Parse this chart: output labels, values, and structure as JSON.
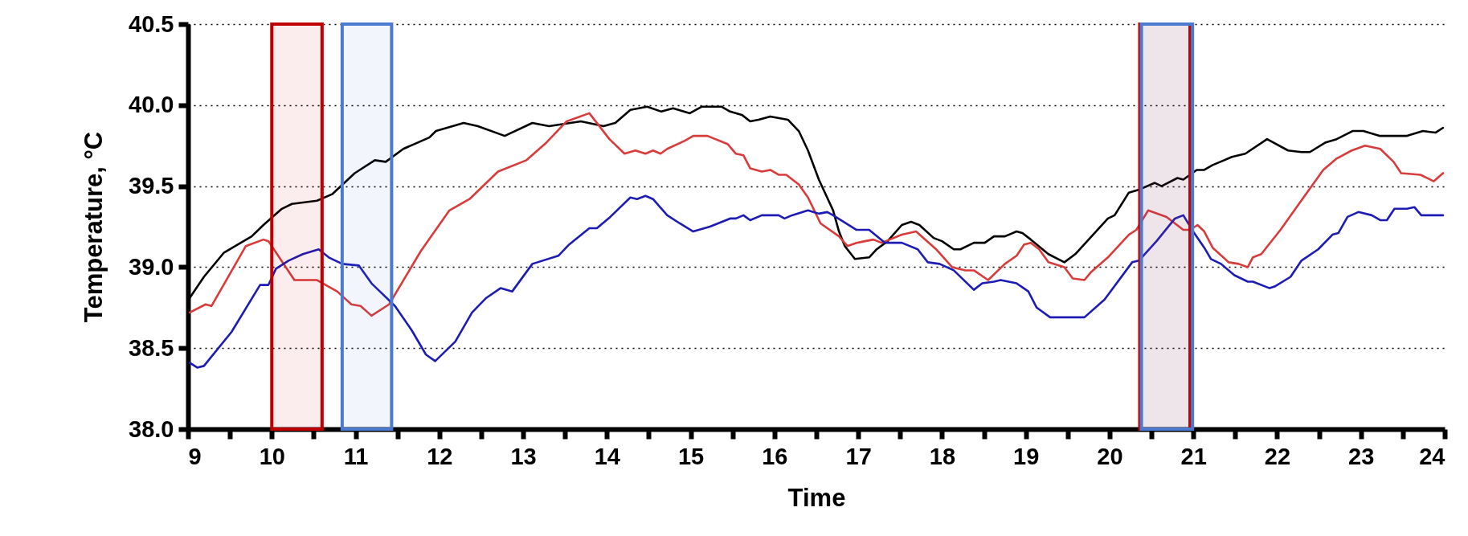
{
  "chart_data": {
    "type": "line",
    "xlabel": "Time",
    "ylabel": "Temperature, °C",
    "xlim": [
      9,
      24
    ],
    "ylim": [
      38,
      40.5
    ],
    "xticks": [
      9,
      {
        "value": 9.5,
        "label": null
      },
      10,
      {
        "value": 10.5,
        "label": null
      },
      11,
      {
        "value": 11.5,
        "label": null
      },
      12,
      {
        "value": 12.5,
        "label": null
      },
      13,
      {
        "value": 13.5,
        "label": null
      },
      14,
      {
        "value": 14.5,
        "label": null
      },
      15,
      {
        "value": 15.5,
        "label": null
      },
      16,
      {
        "value": 16.5,
        "label": null
      },
      17,
      {
        "value": 17.5,
        "label": null
      },
      18,
      {
        "value": 18.5,
        "label": null
      },
      19,
      {
        "value": 19.5,
        "label": null
      },
      20,
      {
        "value": 20.5,
        "label": null
      },
      21,
      {
        "value": 21.5,
        "label": null
      },
      22,
      {
        "value": 22.5,
        "label": null
      },
      23,
      {
        "value": 23.5,
        "label": null
      },
      24
    ],
    "yticks": [
      {
        "value": 38,
        "label": "38.0"
      },
      38.5,
      {
        "value": 39,
        "label": "39.0"
      },
      39.5,
      {
        "value": 40,
        "label": "40.0"
      },
      40.5
    ],
    "grid": "y",
    "series": [
      {
        "color": "#000000",
        "x": [
          9.02,
          9.19,
          9.43,
          9.76,
          9.9,
          10.12,
          10.24,
          10.54,
          10.72,
          10.99,
          11.23,
          11.36,
          11.57,
          11.88,
          11.96,
          12.29,
          12.46,
          12.78,
          13.11,
          13.31,
          13.69,
          13.96,
          14.1,
          14.28,
          14.48,
          14.65,
          14.79,
          14.99,
          15.13,
          15.37,
          15.47,
          15.61,
          15.71,
          15.81,
          15.95,
          16.16,
          16.29,
          16.4,
          16.53,
          16.7,
          16.77,
          16.84,
          16.96,
          17.13,
          17.22,
          17.35,
          17.52,
          17.63,
          17.73,
          17.9,
          18.0,
          18.14,
          18.22,
          18.38,
          18.51,
          18.62,
          18.75,
          18.89,
          18.96,
          19.06,
          19.27,
          19.46,
          19.59,
          19.98,
          20.06,
          20.23,
          20.36,
          20.54,
          20.62,
          20.81,
          20.88,
          21.04,
          21.13,
          21.23,
          21.46,
          21.62,
          21.88,
          22.13,
          22.29,
          22.39,
          22.58,
          22.71,
          22.9,
          23.03,
          23.22,
          23.32,
          23.55,
          23.74,
          23.89,
          23.98
        ],
        "values": [
          38.81,
          38.94,
          39.09,
          39.19,
          39.26,
          39.36,
          39.39,
          39.41,
          39.45,
          39.58,
          39.66,
          39.65,
          39.73,
          39.8,
          39.84,
          39.89,
          39.87,
          39.81,
          39.89,
          39.87,
          39.9,
          39.87,
          39.89,
          39.97,
          39.99,
          39.96,
          39.98,
          39.95,
          39.99,
          39.99,
          39.96,
          39.94,
          39.9,
          39.91,
          39.93,
          39.91,
          39.84,
          39.72,
          39.54,
          39.35,
          39.22,
          39.13,
          39.05,
          39.06,
          39.11,
          39.16,
          39.26,
          39.28,
          39.26,
          39.18,
          39.16,
          39.11,
          39.11,
          39.15,
          39.15,
          39.19,
          39.19,
          39.22,
          39.21,
          39.17,
          39.08,
          39.03,
          39.08,
          39.3,
          39.32,
          39.46,
          39.48,
          39.52,
          39.5,
          39.55,
          39.54,
          39.6,
          39.6,
          39.63,
          39.68,
          39.7,
          39.79,
          39.72,
          39.71,
          39.71,
          39.77,
          39.79,
          39.84,
          39.84,
          39.81,
          39.81,
          39.81,
          39.84,
          39.83,
          39.86
        ]
      },
      {
        "color": "#d93b3b",
        "x": [
          9.02,
          9.21,
          9.28,
          9.69,
          9.9,
          9.96,
          10.27,
          10.54,
          10.78,
          10.95,
          11.06,
          11.19,
          11.4,
          11.78,
          12.12,
          12.36,
          12.7,
          13.04,
          13.28,
          13.52,
          13.79,
          14.03,
          14.21,
          14.34,
          14.46,
          14.55,
          14.64,
          14.72,
          14.93,
          15.03,
          15.2,
          15.44,
          15.54,
          15.63,
          15.71,
          15.85,
          15.95,
          16.05,
          16.14,
          16.29,
          16.4,
          16.55,
          16.77,
          16.87,
          16.98,
          17.08,
          17.18,
          17.28,
          17.52,
          17.69,
          17.93,
          18.12,
          18.28,
          18.38,
          18.55,
          18.75,
          18.89,
          18.98,
          19.06,
          19.16,
          19.27,
          19.46,
          19.56,
          19.7,
          19.78,
          19.98,
          20.23,
          20.32,
          20.46,
          20.68,
          20.88,
          20.96,
          21.05,
          21.13,
          21.23,
          21.42,
          21.54,
          21.65,
          21.71,
          21.81,
          22.04,
          22.26,
          22.55,
          22.71,
          22.89,
          23.05,
          23.23,
          23.39,
          23.48,
          23.71,
          23.87,
          23.98
        ],
        "values": [
          38.72,
          38.77,
          38.76,
          39.13,
          39.17,
          39.16,
          38.92,
          38.92,
          38.85,
          38.77,
          38.76,
          38.7,
          38.77,
          39.1,
          39.35,
          39.42,
          39.59,
          39.66,
          39.77,
          39.9,
          39.95,
          39.79,
          39.7,
          39.72,
          39.7,
          39.72,
          39.7,
          39.73,
          39.78,
          39.81,
          39.81,
          39.76,
          39.7,
          39.69,
          39.61,
          39.59,
          39.6,
          39.57,
          39.57,
          39.51,
          39.43,
          39.27,
          39.19,
          39.13,
          39.15,
          39.16,
          39.17,
          39.15,
          39.2,
          39.22,
          39.11,
          39.0,
          38.98,
          38.98,
          38.92,
          39.02,
          39.07,
          39.14,
          39.15,
          39.11,
          39.03,
          39.0,
          38.93,
          38.92,
          38.97,
          39.06,
          39.2,
          39.23,
          39.35,
          39.31,
          39.23,
          39.23,
          39.26,
          39.22,
          39.12,
          39.03,
          39.02,
          39.0,
          39.06,
          39.08,
          39.23,
          39.39,
          39.6,
          39.67,
          39.72,
          39.75,
          39.73,
          39.65,
          39.58,
          39.57,
          39.53,
          39.58
        ]
      },
      {
        "color": "#1c1cb4",
        "x": [
          9.02,
          9.11,
          9.19,
          9.52,
          9.86,
          9.96,
          10.05,
          10.2,
          10.37,
          10.56,
          10.68,
          10.84,
          11.04,
          11.19,
          11.47,
          11.67,
          11.84,
          11.95,
          12.19,
          12.39,
          12.56,
          12.73,
          12.87,
          13.11,
          13.42,
          13.55,
          13.79,
          13.88,
          14.04,
          14.28,
          14.36,
          14.46,
          14.55,
          14.72,
          14.87,
          15.03,
          15.23,
          15.47,
          15.54,
          15.63,
          15.71,
          15.85,
          16.05,
          16.12,
          16.21,
          16.4,
          16.53,
          16.63,
          16.7,
          16.98,
          17.13,
          17.32,
          17.52,
          17.71,
          17.83,
          17.97,
          18.14,
          18.38,
          18.48,
          18.62,
          18.7,
          18.89,
          19.03,
          19.13,
          19.29,
          19.7,
          19.94,
          20.27,
          20.35,
          20.56,
          20.78,
          20.88,
          21.01,
          21.13,
          21.21,
          21.33,
          21.49,
          21.65,
          21.71,
          21.91,
          21.97,
          22.16,
          22.29,
          22.49,
          22.66,
          22.73,
          22.84,
          22.97,
          23.13,
          23.23,
          23.31,
          23.4,
          23.55,
          23.64,
          23.72,
          23.98
        ],
        "values": [
          38.41,
          38.38,
          38.39,
          38.6,
          38.89,
          38.89,
          38.99,
          39.04,
          39.08,
          39.11,
          39.06,
          39.02,
          39.01,
          38.9,
          38.76,
          38.61,
          38.46,
          38.42,
          38.54,
          38.72,
          38.81,
          38.87,
          38.85,
          39.02,
          39.07,
          39.14,
          39.24,
          39.24,
          39.31,
          39.43,
          39.42,
          39.44,
          39.42,
          39.32,
          39.27,
          39.22,
          39.25,
          39.3,
          39.3,
          39.32,
          39.29,
          39.32,
          39.32,
          39.3,
          39.32,
          39.35,
          39.33,
          39.34,
          39.32,
          39.23,
          39.23,
          39.15,
          39.15,
          39.11,
          39.03,
          39.02,
          38.98,
          38.86,
          38.9,
          38.91,
          38.92,
          38.9,
          38.85,
          38.75,
          38.69,
          38.69,
          38.8,
          39.03,
          39.04,
          39.16,
          39.3,
          39.32,
          39.21,
          39.12,
          39.05,
          39.02,
          38.95,
          38.91,
          38.91,
          38.87,
          38.88,
          38.94,
          39.04,
          39.11,
          39.2,
          39.21,
          39.31,
          39.34,
          39.32,
          39.29,
          39.29,
          39.36,
          39.36,
          39.37,
          39.32,
          39.32
        ]
      }
    ],
    "bands": [
      {
        "axis": "x",
        "from": 10.0,
        "to": 10.6,
        "color": "#c00000"
      },
      {
        "axis": "x",
        "from": 10.84,
        "to": 11.43,
        "color": "#4a7bd0"
      },
      {
        "axis": "x",
        "from": 20.36,
        "to": 20.96,
        "color": "#c00000"
      },
      {
        "axis": "x",
        "from": 20.38,
        "to": 20.99,
        "color": "#4a7bd0"
      }
    ]
  }
}
